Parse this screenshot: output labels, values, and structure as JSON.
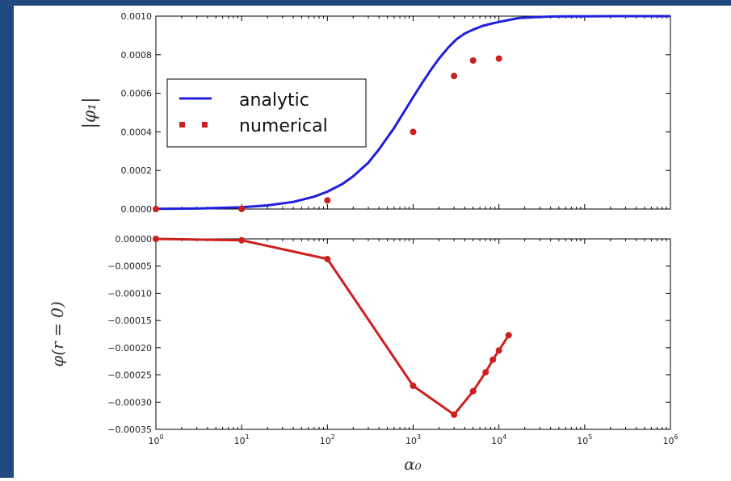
{
  "colors": {
    "frame": "#214a82",
    "analytic": "#1f1fdc",
    "numerical": "#cc1f1f",
    "background": "#ffffff"
  },
  "chart_data": [
    {
      "type": "line",
      "xscale": "log",
      "xlim": [
        1,
        1000000
      ],
      "ylim": [
        0,
        0.001
      ],
      "ylabel": "|φ₁|",
      "yticks": [
        "0.0000",
        "0.0002",
        "0.0004",
        "0.0006",
        "0.0008",
        "0.0010"
      ],
      "ytick_values": [
        0,
        0.0002,
        0.0004,
        0.0006,
        0.0008,
        0.001
      ],
      "legend": {
        "position": "center-left",
        "entries": [
          "analytic",
          "numerical"
        ]
      },
      "series": [
        {
          "name": "analytic",
          "style": "line",
          "x": [
            1,
            3,
            10,
            20,
            40,
            70,
            100,
            150,
            200,
            300,
            400,
            600,
            800,
            1000,
            1300,
            1600,
            2000,
            2600,
            3200,
            4000,
            5000,
            6500,
            8000,
            10000,
            13000,
            17000,
            22000,
            30000,
            40000,
            60000,
            100000,
            200000,
            1000000
          ],
          "y": [
            1e-06,
            2.5e-06,
            9e-06,
            1.9e-05,
            3.7e-05,
            6.4e-05,
            9e-05,
            0.00013,
            0.00017,
            0.00024,
            0.00031,
            0.00042,
            0.00051,
            0.00058,
            0.00066,
            0.00072,
            0.00078,
            0.00084,
            0.00088,
            0.00091,
            0.00093,
            0.00095,
            0.00096,
            0.00097,
            0.00098,
            0.00099,
            0.000993,
            0.000996,
            0.000998,
            0.000999,
            0.000999,
            0.001,
            0.001
          ]
        },
        {
          "name": "numerical",
          "style": "markers",
          "x": [
            1,
            10,
            100,
            1000,
            3000,
            5000,
            10000
          ],
          "y": [
            0,
            5e-07,
            4.5e-05,
            0.0004,
            0.00069,
            0.00077,
            0.00078
          ]
        }
      ]
    },
    {
      "type": "line",
      "xscale": "log",
      "xlim": [
        1,
        1000000
      ],
      "ylim": [
        -0.00035,
        0
      ],
      "ylabel": "φ(r = 0)",
      "xlabel": "α₀",
      "yticks": [
        "0.00000",
        "−0.00005",
        "−0.00010",
        "−0.00015",
        "−0.00020",
        "−0.00025",
        "−0.00030",
        "−0.00035"
      ],
      "ytick_values": [
        0,
        -5e-05,
        -0.0001,
        -0.00015,
        -0.0002,
        -0.00025,
        -0.0003,
        -0.00035
      ],
      "xtick_exponents": [
        "0",
        "1",
        "2",
        "3",
        "4",
        "5",
        "6"
      ],
      "xtick_values": [
        1,
        10,
        100,
        1000,
        10000,
        100000,
        1000000
      ],
      "series": [
        {
          "style": "line+markers",
          "x": [
            1,
            10,
            100,
            1000,
            3000,
            5000,
            7000,
            8500,
            10000,
            13000
          ],
          "y": [
            0,
            -2.5e-06,
            -3.7e-05,
            -0.00027,
            -0.000323,
            -0.00028,
            -0.000245,
            -0.000222,
            -0.000205,
            -0.000177
          ]
        }
      ]
    }
  ]
}
